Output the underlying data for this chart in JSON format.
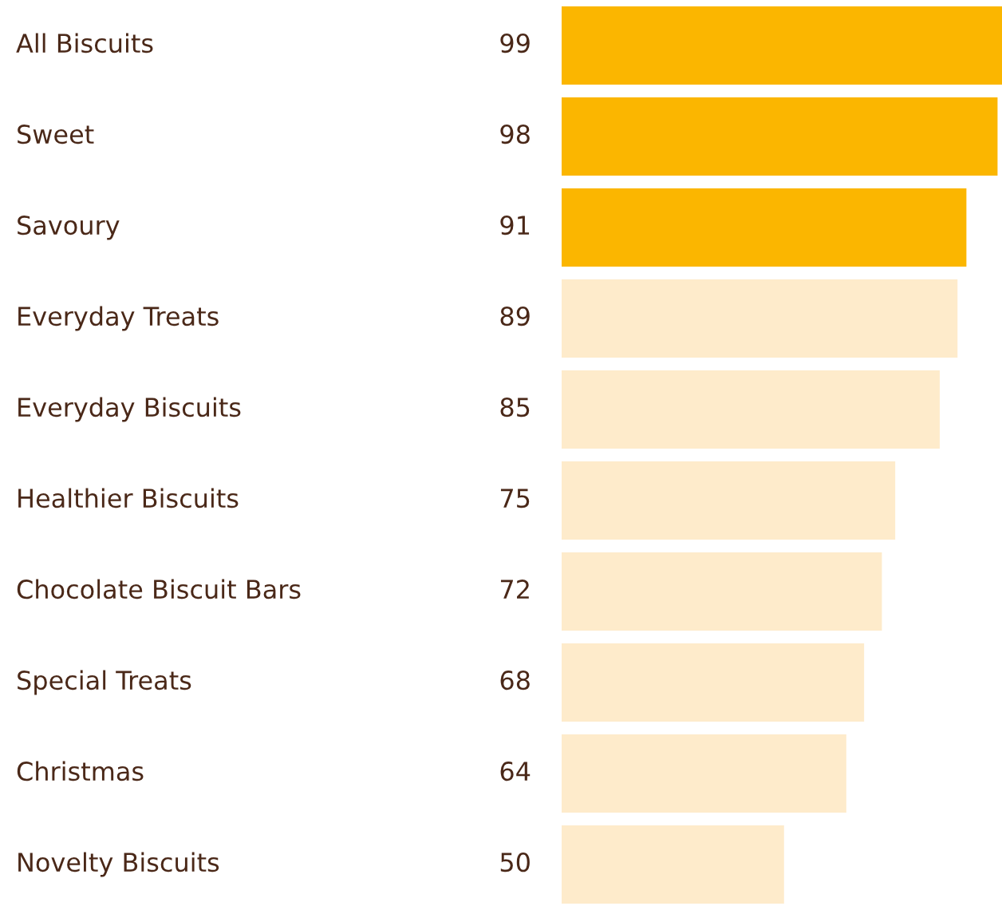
{
  "chart_data": {
    "type": "bar",
    "orientation": "horizontal",
    "categories": [
      "All Biscuits",
      "Sweet",
      "Savoury",
      "Everyday Treats",
      "Everyday Biscuits",
      "Healthier Biscuits",
      "Chocolate Biscuit Bars",
      "Special Treats",
      "Christmas",
      "Novelty Biscuits"
    ],
    "values": [
      99,
      98,
      91,
      89,
      85,
      75,
      72,
      68,
      64,
      50
    ],
    "colors": [
      "#fbb600",
      "#fbb600",
      "#fbb600",
      "#feebcb",
      "#feebcb",
      "#feebcb",
      "#feebcb",
      "#feebcb",
      "#feebcb",
      "#feebcb"
    ],
    "data_labels": true
  }
}
